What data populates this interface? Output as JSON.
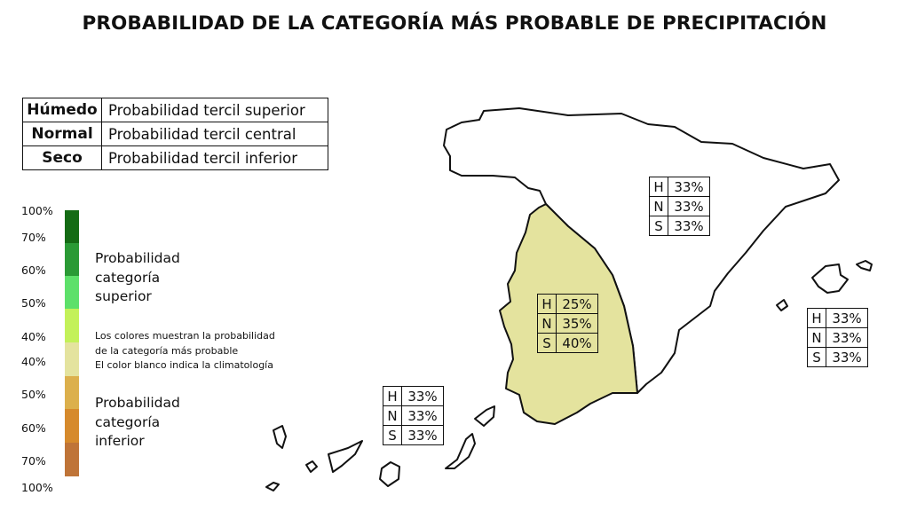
{
  "title": "PROBABILIDAD DE LA CATEGORÍA MÁS PROBABLE DE PRECIPITACIÓN",
  "categories_key": [
    {
      "category": "Húmedo",
      "description": "Probabilidad tercil superior"
    },
    {
      "category": "Normal",
      "description": "Probabilidad tercil central"
    },
    {
      "category": "Seco",
      "description": "Probabilidad tercil inferior"
    }
  ],
  "legend": {
    "tick_labels": [
      "100%",
      "70%",
      "60%",
      "50%",
      "40%",
      "40%",
      "50%",
      "60%",
      "70%",
      "100%"
    ],
    "scale_colors": [
      "#146b14",
      "#2a9a35",
      "#5de06a",
      "#c3f159",
      "#e4e39e",
      "#dcb04c",
      "#d68a2c",
      "#bf7438"
    ],
    "upper_heading": [
      "Probabilidad",
      "categoría",
      "superior"
    ],
    "lower_heading": [
      "Probabilidad",
      "categoría",
      "inferior"
    ],
    "note_lines": [
      "Los colores muestran la probabilidad",
      "de la categoría más probable",
      "El color blanco indica la climatología"
    ]
  },
  "regions": [
    {
      "name": "north-east-peninsula",
      "fill": "#ffffff",
      "values": [
        {
          "label": "H",
          "value": "33%"
        },
        {
          "label": "N",
          "value": "33%"
        },
        {
          "label": "S",
          "value": "33%"
        }
      ]
    },
    {
      "name": "south-west-peninsula",
      "fill": "#e4e39e",
      "values": [
        {
          "label": "H",
          "value": "25%"
        },
        {
          "label": "N",
          "value": "35%"
        },
        {
          "label": "S",
          "value": "40%"
        }
      ]
    },
    {
      "name": "balearic-islands",
      "fill": "#ffffff",
      "values": [
        {
          "label": "H",
          "value": "33%"
        },
        {
          "label": "N",
          "value": "33%"
        },
        {
          "label": "S",
          "value": "33%"
        }
      ]
    },
    {
      "name": "canary-islands",
      "fill": "#ffffff",
      "values": [
        {
          "label": "H",
          "value": "33%"
        },
        {
          "label": "N",
          "value": "33%"
        },
        {
          "label": "S",
          "value": "33%"
        }
      ]
    }
  ]
}
